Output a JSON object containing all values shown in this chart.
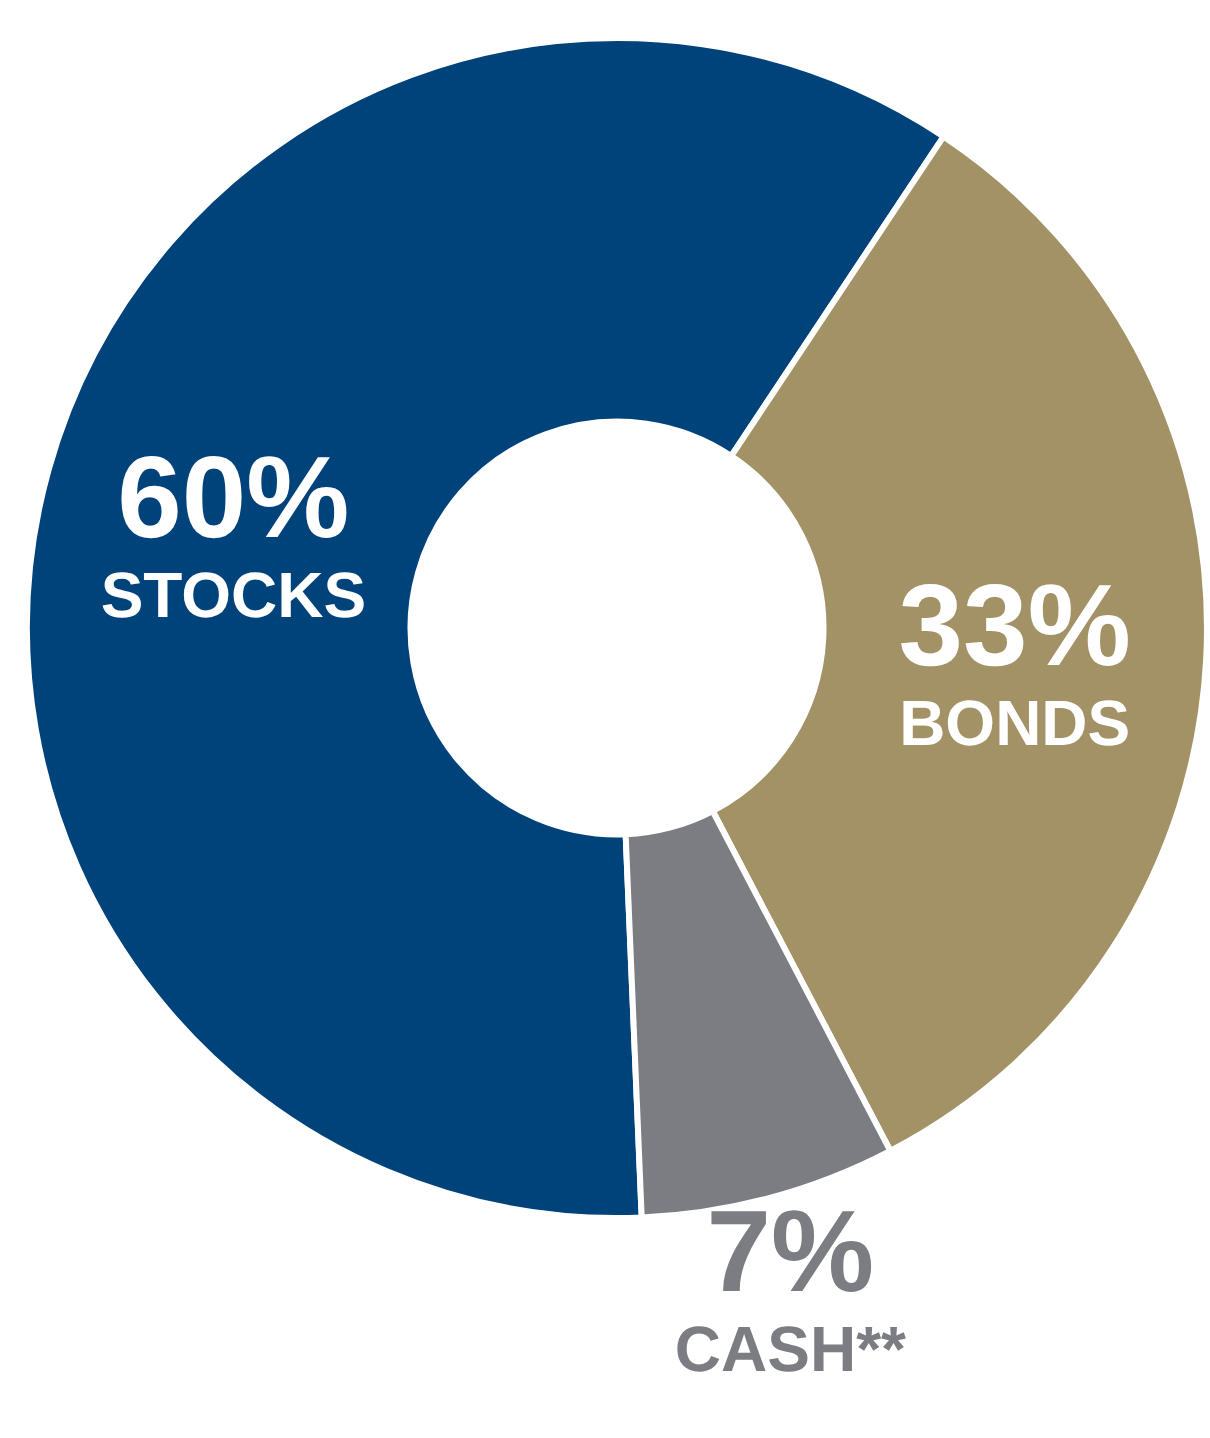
{
  "chart_data": {
    "type": "donut",
    "categories": [
      "STOCKS",
      "BONDS",
      "CASH**"
    ],
    "values": [
      60,
      33,
      7
    ],
    "value_labels": [
      "60%",
      "33%",
      "7%"
    ],
    "colors": [
      "#00427a",
      "#a39266",
      "#7b7d82"
    ],
    "legend": false
  }
}
